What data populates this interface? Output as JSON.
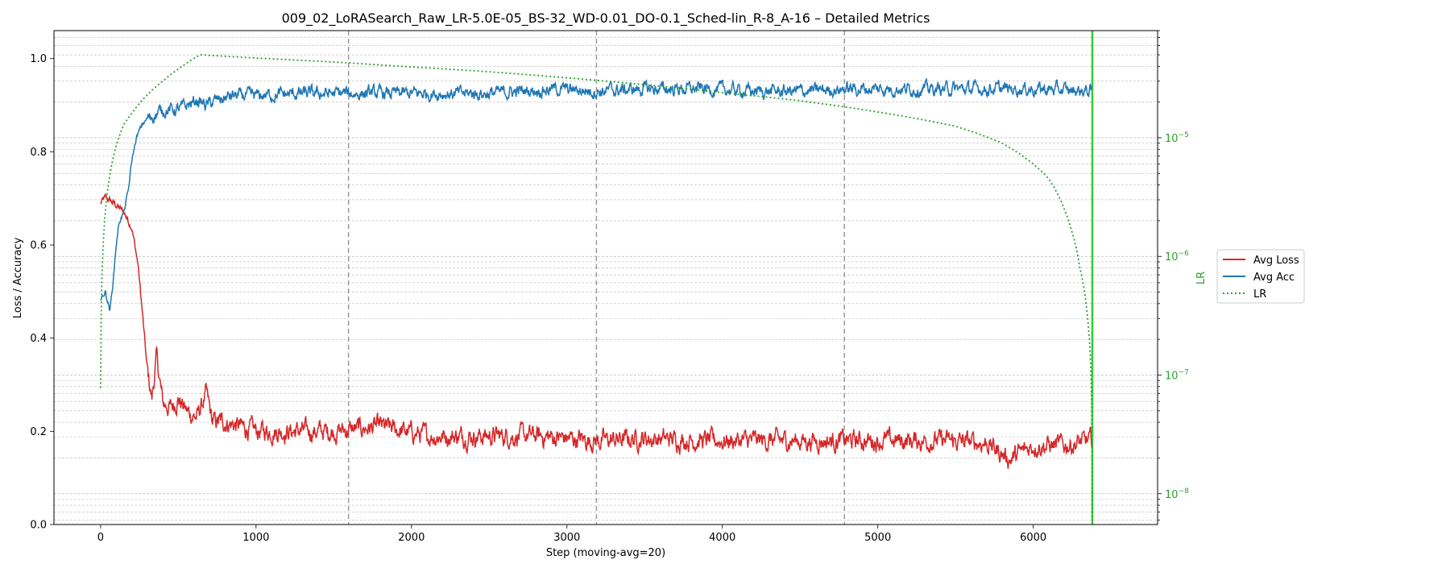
{
  "chart_data": {
    "type": "line",
    "title": "009_02_LoRASearch_Raw_LR-5.0E-05_BS-32_WD-0.01_DO-0.1_Sched-lin_R-8_A-16 – Detailed Metrics",
    "xlabel": "Step (moving-avg=20)",
    "ylabel": "Loss / Accuracy",
    "ylabel_right": "LR",
    "xlim": [
      -300,
      6800
    ],
    "ylim": [
      0,
      1.06
    ],
    "y2_scale": "log",
    "y2lim": [
      5.5e-09,
      8e-05
    ],
    "x_ticks": [
      "0",
      "1000",
      "2000",
      "3000",
      "4000",
      "5000",
      "6000"
    ],
    "x_tick_values": [
      0,
      1000,
      2000,
      3000,
      4000,
      5000,
      6000
    ],
    "y_ticks": [
      "0.0",
      "0.2",
      "0.4",
      "0.6",
      "0.8",
      "1.0"
    ],
    "y_tick_values": [
      0,
      0.2,
      0.4,
      0.6,
      0.8,
      1.0
    ],
    "y2_ticks": [
      {
        "base": "10",
        "exp": "−5",
        "value": 1e-05
      },
      {
        "base": "10",
        "exp": "−6",
        "value": 1e-06
      },
      {
        "base": "10",
        "exp": "−7",
        "value": 1e-07
      },
      {
        "base": "10",
        "exp": "−8",
        "value": 1e-08
      }
    ],
    "vlines_dashed": [
      1595,
      3190,
      4785
    ],
    "vline_end": 6380,
    "grid": "y-minor-on-log-axis",
    "legend_position": "right",
    "colors": {
      "loss": "#d62728",
      "acc": "#1f77b4",
      "lr": "#2ca02c",
      "end_line": "#32cd32",
      "dashed": "#999999"
    },
    "series": [
      {
        "name": "Avg Loss",
        "color": "#d62728",
        "style": "solid",
        "x": [
          0,
          30,
          60,
          100,
          150,
          200,
          240,
          270,
          300,
          330,
          360,
          400,
          450,
          500,
          560,
          620,
          680,
          720,
          800,
          900,
          1000,
          1200,
          1500,
          1800,
          2100,
          2500,
          2800,
          3000,
          3200,
          3500,
          3900,
          4200,
          4500,
          4800,
          5100,
          5400,
          5700,
          5850,
          6000,
          6200,
          6380
        ],
        "y": [
          0.69,
          0.7,
          0.695,
          0.685,
          0.67,
          0.64,
          0.56,
          0.45,
          0.33,
          0.27,
          0.36,
          0.26,
          0.25,
          0.27,
          0.24,
          0.23,
          0.28,
          0.22,
          0.22,
          0.21,
          0.2,
          0.2,
          0.2,
          0.21,
          0.19,
          0.19,
          0.19,
          0.185,
          0.18,
          0.185,
          0.18,
          0.18,
          0.18,
          0.18,
          0.18,
          0.18,
          0.175,
          0.14,
          0.17,
          0.17,
          0.18
        ]
      },
      {
        "name": "Avg Acc",
        "color": "#1f77b4",
        "style": "solid",
        "x": [
          0,
          30,
          60,
          80,
          100,
          120,
          150,
          180,
          200,
          230,
          270,
          300,
          350,
          400,
          450,
          500,
          560,
          620,
          680,
          750,
          850,
          1000,
          1300,
          1600,
          2000,
          2500,
          2900,
          3200,
          3500,
          3900,
          4200,
          4500,
          4800,
          5200,
          5600,
          6000,
          6380
        ],
        "y": [
          0.48,
          0.5,
          0.46,
          0.52,
          0.6,
          0.65,
          0.67,
          0.72,
          0.78,
          0.83,
          0.86,
          0.87,
          0.88,
          0.89,
          0.89,
          0.89,
          0.9,
          0.91,
          0.9,
          0.91,
          0.92,
          0.92,
          0.925,
          0.925,
          0.925,
          0.925,
          0.935,
          0.93,
          0.935,
          0.935,
          0.93,
          0.93,
          0.935,
          0.935,
          0.935,
          0.935,
          0.93
        ]
      },
      {
        "name": "LR",
        "color": "#2ca02c",
        "style": "dotted",
        "axis": "right",
        "x": [
          0,
          20,
          50,
          100,
          150,
          200,
          300,
          400,
          500,
          640,
          1000,
          1500,
          2000,
          2500,
          3000,
          3500,
          4000,
          4500,
          5000,
          5500,
          5800,
          6000,
          6100,
          6200,
          6250,
          6300,
          6330,
          6350,
          6370,
          6380
        ],
        "y": [
          7.8e-08,
          1.5e-06,
          4e-06,
          8.5e-06,
          1.3e-05,
          1.6e-05,
          2.3e-05,
          3e-05,
          3.8e-05,
          5e-05,
          4.7e-05,
          4.35e-05,
          3.95e-05,
          3.6e-05,
          3.2e-05,
          2.8e-05,
          2.4e-05,
          2.05e-05,
          1.65e-05,
          1.25e-05,
          9e-06,
          6e-06,
          4.5e-06,
          2.5e-06,
          1.6e-06,
          8e-07,
          5e-07,
          3e-07,
          1.2e-07,
          6e-09
        ]
      }
    ]
  }
}
